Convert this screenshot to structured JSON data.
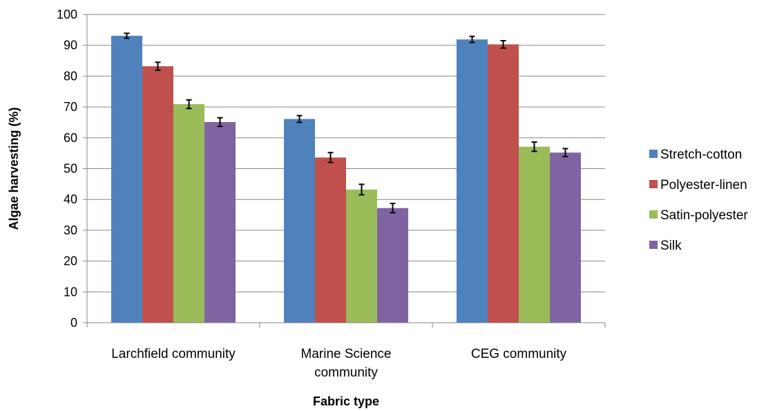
{
  "chart_data": {
    "type": "bar",
    "title": "",
    "xlabel": "Fabric type",
    "ylabel": "Algae harvesting (%)",
    "ylim": [
      0,
      100
    ],
    "yticks": [
      0,
      10,
      20,
      30,
      40,
      50,
      60,
      70,
      80,
      90,
      100
    ],
    "grid": true,
    "legend_position": "right",
    "categories": [
      [
        "Larchfield community"
      ],
      [
        "Marine Science",
        "community"
      ],
      [
        "CEG community"
      ]
    ],
    "series": [
      {
        "name": "Stretch-cotton",
        "color": "#4F81BD",
        "values": [
          93.1,
          66.1,
          91.9
        ],
        "errors": [
          0.8,
          1.1,
          1.0
        ]
      },
      {
        "name": "Polyester-linen",
        "color": "#C0504D",
        "values": [
          83.2,
          53.6,
          90.3
        ],
        "errors": [
          1.3,
          1.6,
          1.2
        ]
      },
      {
        "name": "Satin-polyester",
        "color": "#9BBB59",
        "values": [
          70.9,
          43.2,
          57.1
        ],
        "errors": [
          1.4,
          1.7,
          1.5
        ]
      },
      {
        "name": "Silk",
        "color": "#8064A2",
        "values": [
          65.1,
          37.2,
          55.2
        ],
        "errors": [
          1.4,
          1.5,
          1.3
        ]
      }
    ]
  }
}
